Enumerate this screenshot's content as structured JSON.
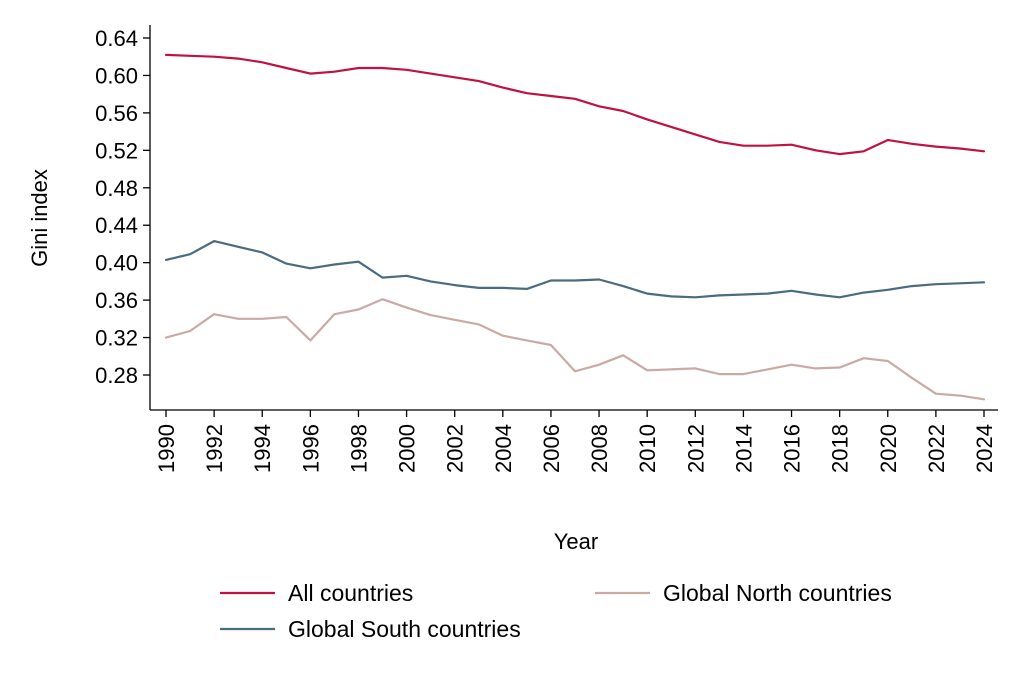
{
  "chart_data": {
    "type": "line",
    "title": "",
    "xlabel": "Year",
    "ylabel": "Gini index",
    "xlim": [
      1990,
      2024
    ],
    "ylim": [
      0.25,
      0.65
    ],
    "yticks": [
      "0.64",
      "0.60",
      "0.56",
      "0.52",
      "0.48",
      "0.44",
      "0.40",
      "0.36",
      "0.32",
      "0.28"
    ],
    "xticks": [
      "1990",
      "1992",
      "1994",
      "1996",
      "1998",
      "2000",
      "2002",
      "2004",
      "2006",
      "2008",
      "2010",
      "2012",
      "2014",
      "2016",
      "2018",
      "2020",
      "2022",
      "2024"
    ],
    "grid": false,
    "legend_position": "bottom",
    "x": [
      1990,
      1991,
      1992,
      1993,
      1994,
      1995,
      1996,
      1997,
      1998,
      1999,
      2000,
      2001,
      2002,
      2003,
      2004,
      2005,
      2006,
      2007,
      2008,
      2009,
      2010,
      2011,
      2012,
      2013,
      2014,
      2015,
      2016,
      2017,
      2018,
      2019,
      2020,
      2021,
      2022,
      2023,
      2024
    ],
    "series": [
      {
        "name": "All countries",
        "color": "#c1123f",
        "values": [
          0.622,
          0.621,
          0.62,
          0.618,
          0.614,
          0.608,
          0.602,
          0.604,
          0.608,
          0.608,
          0.606,
          0.602,
          0.598,
          0.594,
          0.587,
          0.581,
          0.578,
          0.575,
          0.567,
          0.562,
          0.553,
          0.545,
          0.537,
          0.529,
          0.525,
          0.525,
          0.526,
          0.52,
          0.516,
          0.519,
          0.531,
          0.527,
          0.524,
          0.522,
          0.519
        ]
      },
      {
        "name": "Global North countries",
        "color": "#c9aaa5",
        "values": [
          0.32,
          0.327,
          0.345,
          0.34,
          0.34,
          0.342,
          0.317,
          0.345,
          0.35,
          0.361,
          0.352,
          0.344,
          0.339,
          0.334,
          0.322,
          0.317,
          0.312,
          0.284,
          0.291,
          0.301,
          0.285,
          0.286,
          0.287,
          0.281,
          0.281,
          0.286,
          0.291,
          0.287,
          0.288,
          0.298,
          0.295,
          0.277,
          0.26,
          0.258,
          0.254
        ]
      },
      {
        "name": "Global South countries",
        "color": "#4a6b80",
        "values": [
          0.403,
          0.409,
          0.423,
          0.417,
          0.411,
          0.399,
          0.394,
          0.398,
          0.401,
          0.384,
          0.386,
          0.38,
          0.376,
          0.373,
          0.373,
          0.372,
          0.381,
          0.381,
          0.382,
          0.375,
          0.367,
          0.364,
          0.363,
          0.365,
          0.366,
          0.367,
          0.37,
          0.366,
          0.363,
          0.368,
          0.371,
          0.375,
          0.377,
          0.378,
          0.379
        ]
      }
    ]
  }
}
